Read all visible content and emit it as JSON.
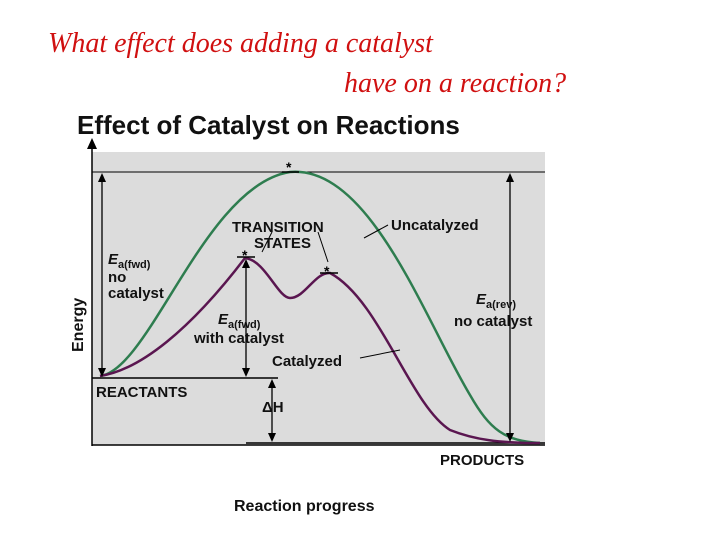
{
  "slide": {
    "question_line1": "What  effect does adding a catalyst",
    "question_line2": "have on a reaction?",
    "question_color": "#d01010"
  },
  "diagram": {
    "title": "Effect of Catalyst on Reactions",
    "y_axis_label": "Energy",
    "x_axis_label": "Reaction progress",
    "labels": {
      "transition_states_1": "TRANSITION",
      "transition_states_2": "STATES",
      "uncatalyzed": "Uncatalyzed",
      "catalyzed": "Catalyzed",
      "ea_fwd_no_cat_sym": "E",
      "ea_fwd_no_cat_sub": "a(fwd)",
      "ea_fwd_no_cat_line2": "no",
      "ea_fwd_no_cat_line3": "catalyst",
      "ea_fwd_cat_sym": "E",
      "ea_fwd_cat_sub": "a(fwd)",
      "ea_fwd_cat_line2": "with catalyst",
      "ea_rev_sym": "E",
      "ea_rev_sub": "a(rev)",
      "ea_rev_line2": "no catalyst",
      "delta_h": "ΔH",
      "reactants": "REACTANTS",
      "products": "PRODUCTS",
      "star": "*"
    },
    "colors": {
      "plot_background": "#dcdcdc",
      "uncatalyzed_curve": "#2e7d4f",
      "catalyzed_curve": "#5a1650",
      "lines": "#000000"
    }
  }
}
